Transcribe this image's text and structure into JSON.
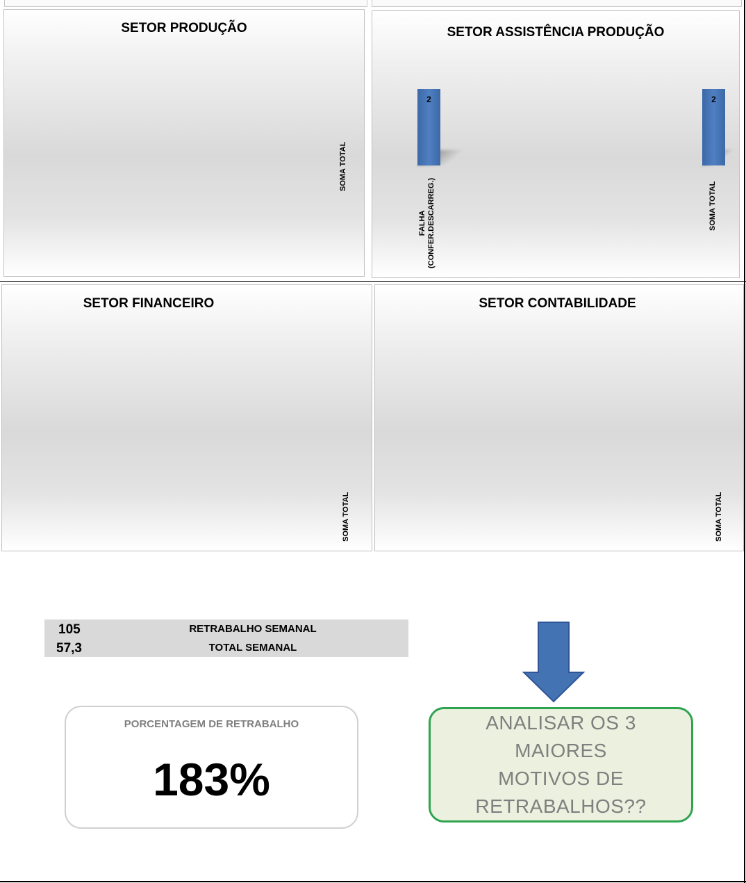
{
  "panels": {
    "producao": {
      "title": "SETOR PRODUÇÃO",
      "axis_label": "SOMA TOTAL"
    },
    "assistencia": {
      "title": "SETOR ASSISTÊNCIA PRODUÇÃO",
      "category_1_line1": "FALHA",
      "category_1_line2": "(CONFER.DESCARREG.)",
      "category_2": "SOMA TOTAL"
    },
    "financeiro": {
      "title": "SETOR FINANCEIRO",
      "axis_label": "SOMA TOTAL"
    },
    "contabilidade": {
      "title": "SETOR CONTABILIDADE",
      "axis_label": "SOMA TOTAL"
    }
  },
  "chart_data": {
    "type": "bar",
    "title": "SETOR ASSISTÊNCIA PRODUÇÃO",
    "categories": [
      "FALHA (CONFER.DESCARREG.)",
      "SOMA TOTAL"
    ],
    "values": [
      2,
      2
    ],
    "data_labels": [
      "2",
      "2"
    ],
    "ylim": [
      0,
      2
    ],
    "grid": false,
    "color": "#4473b4"
  },
  "summary": {
    "row1_value": "105",
    "row1_label": "RETRABALHO SEMANAL",
    "row2_value": "57,3",
    "row2_label": "TOTAL  SEMANAL"
  },
  "percentage": {
    "title": "PORCENTAGEM DE RETRABALHO",
    "value": "183%"
  },
  "callout": {
    "line1": "ANALISAR OS 3 MAIORES",
    "line2": "MOTIVOS DE",
    "line3": "RETRABALHOS??",
    "arrow_icon": "arrow-down-icon",
    "border_color": "#2ea44f",
    "fill_color": "#ebf1de"
  }
}
